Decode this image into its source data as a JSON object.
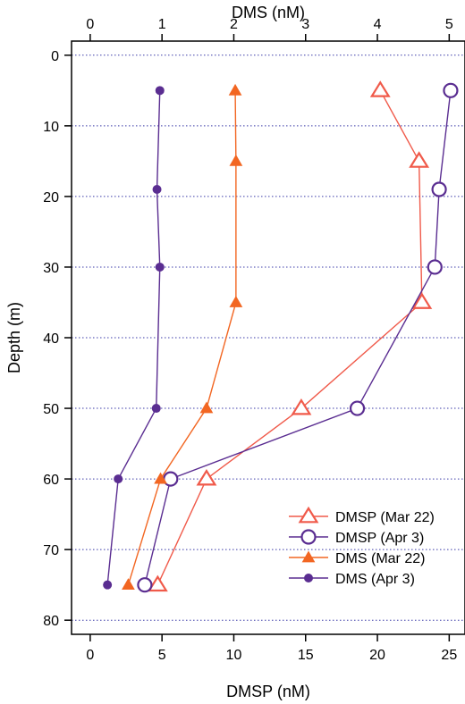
{
  "chart_data": {
    "type": "line",
    "orientation": "depth-profile",
    "y_axis": {
      "label": "Depth (m)",
      "range": [
        -2,
        82
      ],
      "inverted": true,
      "ticks": [
        0,
        10,
        20,
        30,
        40,
        50,
        60,
        70,
        80
      ],
      "grid": true
    },
    "x_axis_bottom": {
      "label": "DMSP (nM)",
      "range": [
        -1.3,
        26.1
      ],
      "ticks": [
        0,
        5,
        10,
        15,
        20,
        25
      ]
    },
    "x_axis_top": {
      "label": "DMS (nM)",
      "range": [
        -0.26,
        5.22
      ],
      "ticks": [
        0,
        1,
        2,
        3,
        4,
        5
      ]
    },
    "legend_position": "bottom-right",
    "series": [
      {
        "name": "DMSP (Mar 22)",
        "axis": "bottom",
        "marker": "open-triangle",
        "color": "#f05a4a",
        "points": [
          {
            "x": 20.2,
            "depth": 5
          },
          {
            "x": 22.9,
            "depth": 15
          },
          {
            "x": 23.1,
            "depth": 35
          },
          {
            "x": 14.7,
            "depth": 50
          },
          {
            "x": 8.1,
            "depth": 60
          },
          {
            "x": 4.7,
            "depth": 75
          }
        ]
      },
      {
        "name": "DMSP (Apr 3)",
        "axis": "bottom",
        "marker": "open-circle",
        "color": "#5a2d91",
        "points": [
          {
            "x": 25.1,
            "depth": 5
          },
          {
            "x": 24.3,
            "depth": 19
          },
          {
            "x": 24.0,
            "depth": 30
          },
          {
            "x": 18.6,
            "depth": 50
          },
          {
            "x": 5.6,
            "depth": 60
          },
          {
            "x": 3.8,
            "depth": 75
          }
        ]
      },
      {
        "name": "DMS (Mar 22)",
        "axis": "top",
        "marker": "filled-triangle",
        "color": "#f26622",
        "points": [
          {
            "x": 2.02,
            "depth": 5
          },
          {
            "x": 2.03,
            "depth": 15
          },
          {
            "x": 2.03,
            "depth": 35
          },
          {
            "x": 1.62,
            "depth": 50
          },
          {
            "x": 0.98,
            "depth": 60
          },
          {
            "x": 0.53,
            "depth": 75
          }
        ]
      },
      {
        "name": "DMS (Apr 3)",
        "axis": "top",
        "marker": "filled-circle",
        "color": "#5a2d91",
        "points": [
          {
            "x": 0.97,
            "depth": 5
          },
          {
            "x": 0.93,
            "depth": 19
          },
          {
            "x": 0.97,
            "depth": 30
          },
          {
            "x": 0.92,
            "depth": 50
          },
          {
            "x": 0.39,
            "depth": 60
          },
          {
            "x": 0.24,
            "depth": 75
          }
        ]
      }
    ],
    "grid_color": "#3a3aa8"
  }
}
